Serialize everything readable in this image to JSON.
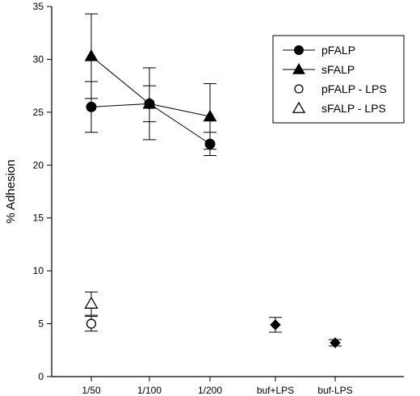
{
  "chart_data": {
    "type": "scatter",
    "title": "",
    "xlabel": "",
    "ylabel": "% Adhesion",
    "ylim": [
      0,
      35
    ],
    "yticks": [
      0,
      5,
      10,
      15,
      20,
      25,
      30,
      35
    ],
    "categories": [
      "1/50",
      "1/100",
      "1/200",
      "buf+LPS",
      "buf-LPS"
    ],
    "grid": false,
    "legend_position": "top-right",
    "series": [
      {
        "name": "pFALP",
        "marker": "circle-filled",
        "connected": true,
        "points": [
          {
            "x": "1/50",
            "y": 25.5,
            "err": 2.4
          },
          {
            "x": "1/100",
            "y": 25.8,
            "err": 1.7
          },
          {
            "x": "1/200",
            "y": 22.0,
            "err": 1.1
          }
        ]
      },
      {
        "name": "sFALP",
        "marker": "triangle-filled",
        "connected": true,
        "points": [
          {
            "x": "1/50",
            "y": 30.3,
            "err": 4.0
          },
          {
            "x": "1/100",
            "y": 25.8,
            "err": 3.4
          },
          {
            "x": "1/200",
            "y": 24.6,
            "err": 3.1
          }
        ]
      },
      {
        "name": "pFALP - LPS",
        "marker": "circle-open",
        "connected": false,
        "points": [
          {
            "x": "1/50",
            "y": 5.0,
            "err": 0.7
          }
        ]
      },
      {
        "name": "sFALP - LPS",
        "marker": "triangle-open",
        "connected": false,
        "points": [
          {
            "x": "1/50",
            "y": 6.9,
            "err": 1.1
          }
        ]
      },
      {
        "marker": "diamond-filled",
        "connected": false,
        "points": [
          {
            "x": "buf+LPS",
            "y": 4.9,
            "err": 0.7
          },
          {
            "x": "buf-LPS",
            "y": 3.2,
            "err": 0.3
          }
        ]
      }
    ]
  }
}
